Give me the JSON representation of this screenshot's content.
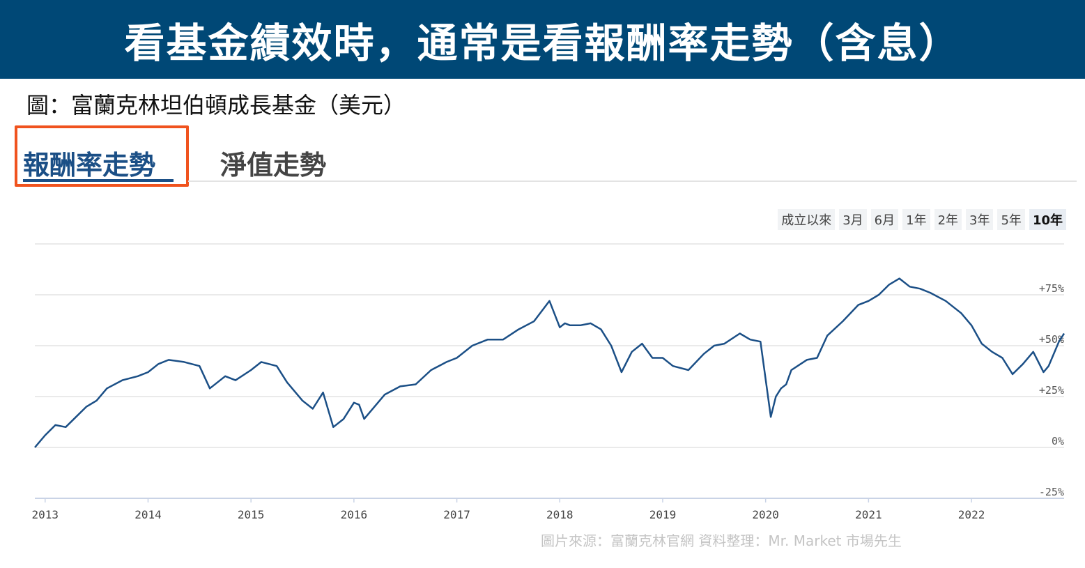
{
  "header": {
    "title": "看基金績效時，通常是看報酬率走勢（含息）"
  },
  "caption": "圖：富蘭克林坦伯頓成長基金（美元）",
  "tabs": [
    {
      "label": "報酬率走勢",
      "active": true
    },
    {
      "label": "淨值走勢",
      "active": false
    }
  ],
  "range_buttons": [
    {
      "label": "成立以來",
      "active": false
    },
    {
      "label": "3月",
      "active": false
    },
    {
      "label": "6月",
      "active": false
    },
    {
      "label": "1年",
      "active": false
    },
    {
      "label": "2年",
      "active": false
    },
    {
      "label": "3年",
      "active": false
    },
    {
      "label": "5年",
      "active": false
    },
    {
      "label": "10年",
      "active": true
    }
  ],
  "colors": {
    "banner": "#004876",
    "line": "#1b4f86",
    "highlight": "#f0531e"
  },
  "chart_data": {
    "type": "line",
    "title": "",
    "xlabel": "",
    "ylabel": "",
    "y_unit": "%",
    "ylim": [
      -25,
      100
    ],
    "xlim": [
      2012.9,
      2022.9
    ],
    "grid": true,
    "y_ticks": [
      {
        "value": 75,
        "label": "+75%"
      },
      {
        "value": 50,
        "label": "+50%"
      },
      {
        "value": 25,
        "label": "+25%"
      },
      {
        "value": 0,
        "label": "0%"
      },
      {
        "value": -25,
        "label": "-25%"
      }
    ],
    "x_ticks": [
      {
        "value": 2013,
        "label": "2013"
      },
      {
        "value": 2014,
        "label": "2014"
      },
      {
        "value": 2015,
        "label": "2015"
      },
      {
        "value": 2016,
        "label": "2016"
      },
      {
        "value": 2017,
        "label": "2017"
      },
      {
        "value": 2018,
        "label": "2018"
      },
      {
        "value": 2019,
        "label": "2019"
      },
      {
        "value": 2020,
        "label": "2020"
      },
      {
        "value": 2021,
        "label": "2021"
      },
      {
        "value": 2022,
        "label": "2022"
      }
    ],
    "series": [
      {
        "name": "",
        "x": [
          2012.9,
          2013.0,
          2013.1,
          2013.2,
          2013.3,
          2013.4,
          2013.5,
          2013.6,
          2013.75,
          2013.9,
          2014.0,
          2014.1,
          2014.2,
          2014.35,
          2014.5,
          2014.6,
          2014.75,
          2014.85,
          2015.0,
          2015.1,
          2015.25,
          2015.35,
          2015.5,
          2015.6,
          2015.7,
          2015.8,
          2015.9,
          2016.0,
          2016.05,
          2016.1,
          2016.2,
          2016.3,
          2016.45,
          2016.6,
          2016.75,
          2016.9,
          2017.0,
          2017.15,
          2017.3,
          2017.45,
          2017.6,
          2017.75,
          2017.9,
          2018.0,
          2018.05,
          2018.1,
          2018.2,
          2018.3,
          2018.4,
          2018.5,
          2018.6,
          2018.7,
          2018.8,
          2018.9,
          2019.0,
          2019.1,
          2019.25,
          2019.4,
          2019.5,
          2019.6,
          2019.75,
          2019.85,
          2019.95,
          2020.05,
          2020.1,
          2020.15,
          2020.2,
          2020.25,
          2020.4,
          2020.5,
          2020.6,
          2020.75,
          2020.9,
          2021.0,
          2021.1,
          2021.2,
          2021.3,
          2021.4,
          2021.5,
          2021.6,
          2021.75,
          2021.9,
          2022.0,
          2022.1,
          2022.2,
          2022.3,
          2022.4,
          2022.5,
          2022.6,
          2022.7,
          2022.75,
          2022.85,
          2022.9
        ],
        "y": [
          0,
          6,
          11,
          10,
          15,
          20,
          23,
          29,
          33,
          35,
          37,
          41,
          43,
          42,
          40,
          29,
          35,
          33,
          38,
          42,
          40,
          32,
          23,
          19,
          27,
          10,
          14,
          22,
          21,
          14,
          20,
          26,
          30,
          31,
          38,
          42,
          44,
          50,
          53,
          53,
          58,
          62,
          72,
          59,
          61,
          60,
          60,
          61,
          58,
          50,
          37,
          47,
          51,
          44,
          44,
          40,
          38,
          46,
          50,
          51,
          56,
          53,
          52,
          15,
          25,
          29,
          31,
          38,
          43,
          44,
          55,
          62,
          70,
          72,
          75,
          80,
          83,
          79,
          78,
          76,
          72,
          66,
          60,
          51,
          47,
          44,
          36,
          41,
          47,
          37,
          40,
          52,
          56
        ]
      }
    ]
  },
  "source_note": "圖片來源：富蘭克林官網  資料整理：Mr. Market 市場先生"
}
